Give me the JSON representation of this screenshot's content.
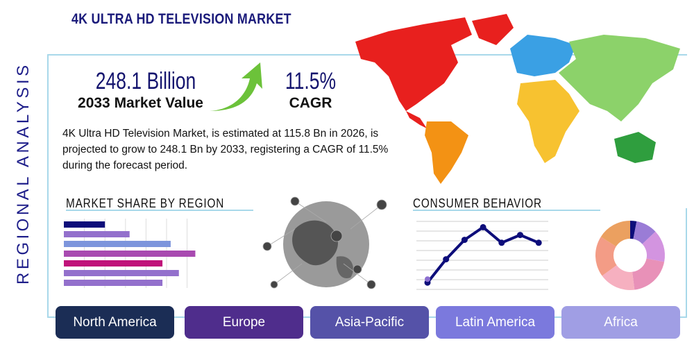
{
  "title": "4K ULTRA HD TELEVISION MARKET",
  "side_label": "REGIONAL ANALYSIS",
  "market_value": {
    "value": "248.1 Billion",
    "label": "2033 Market Value"
  },
  "cagr": {
    "value": "11.5%",
    "label": "CAGR"
  },
  "description": "4K Ultra HD Television Market, is estimated at 115.8 Bn in 2026, is projected to grow to 248.1 Bn by 2033, registering a CAGR of 11.5% during the forecast period.",
  "market_share": {
    "heading": "MARKET SHARE BY REGION"
  },
  "consumer": {
    "heading": "CONSUMER BEHAVIOR"
  },
  "regions": [
    {
      "label": "North America",
      "color": "#1b2d55"
    },
    {
      "label": "Europe",
      "color": "#4f2d8c"
    },
    {
      "label": "Asia-Pacific",
      "color": "#5552a8"
    },
    {
      "label": "Latin America",
      "color": "#7b79dd"
    },
    {
      "label": "Africa",
      "color": "#a09ee4"
    }
  ],
  "chart_data": [
    {
      "type": "bar",
      "orientation": "horizontal",
      "values": [
        2.0,
        3.2,
        5.2,
        6.4,
        4.8,
        5.6,
        4.8
      ],
      "colors": [
        "#0d0d7a",
        "#9370cc",
        "#7d95dc",
        "#a84ab0",
        "#c0127a",
        "#9370cc",
        "#9370cc"
      ],
      "xlim": [
        0,
        7
      ],
      "grid": true
    },
    {
      "type": "line",
      "values": [
        0.7,
        3.1,
        5.1,
        6.4,
        4.8,
        5.6,
        4.8
      ],
      "ylim": [
        0,
        7
      ],
      "grid": true,
      "color": "#0d0d7a"
    },
    {
      "type": "pie",
      "donut": true,
      "values": [
        3,
        10,
        15,
        20,
        17,
        19,
        16
      ],
      "colors": [
        "#0d0d7a",
        "#9a7cd6",
        "#d394e0",
        "#e891b8",
        "#f6b0c0",
        "#f39c86",
        "#eba060"
      ]
    }
  ]
}
